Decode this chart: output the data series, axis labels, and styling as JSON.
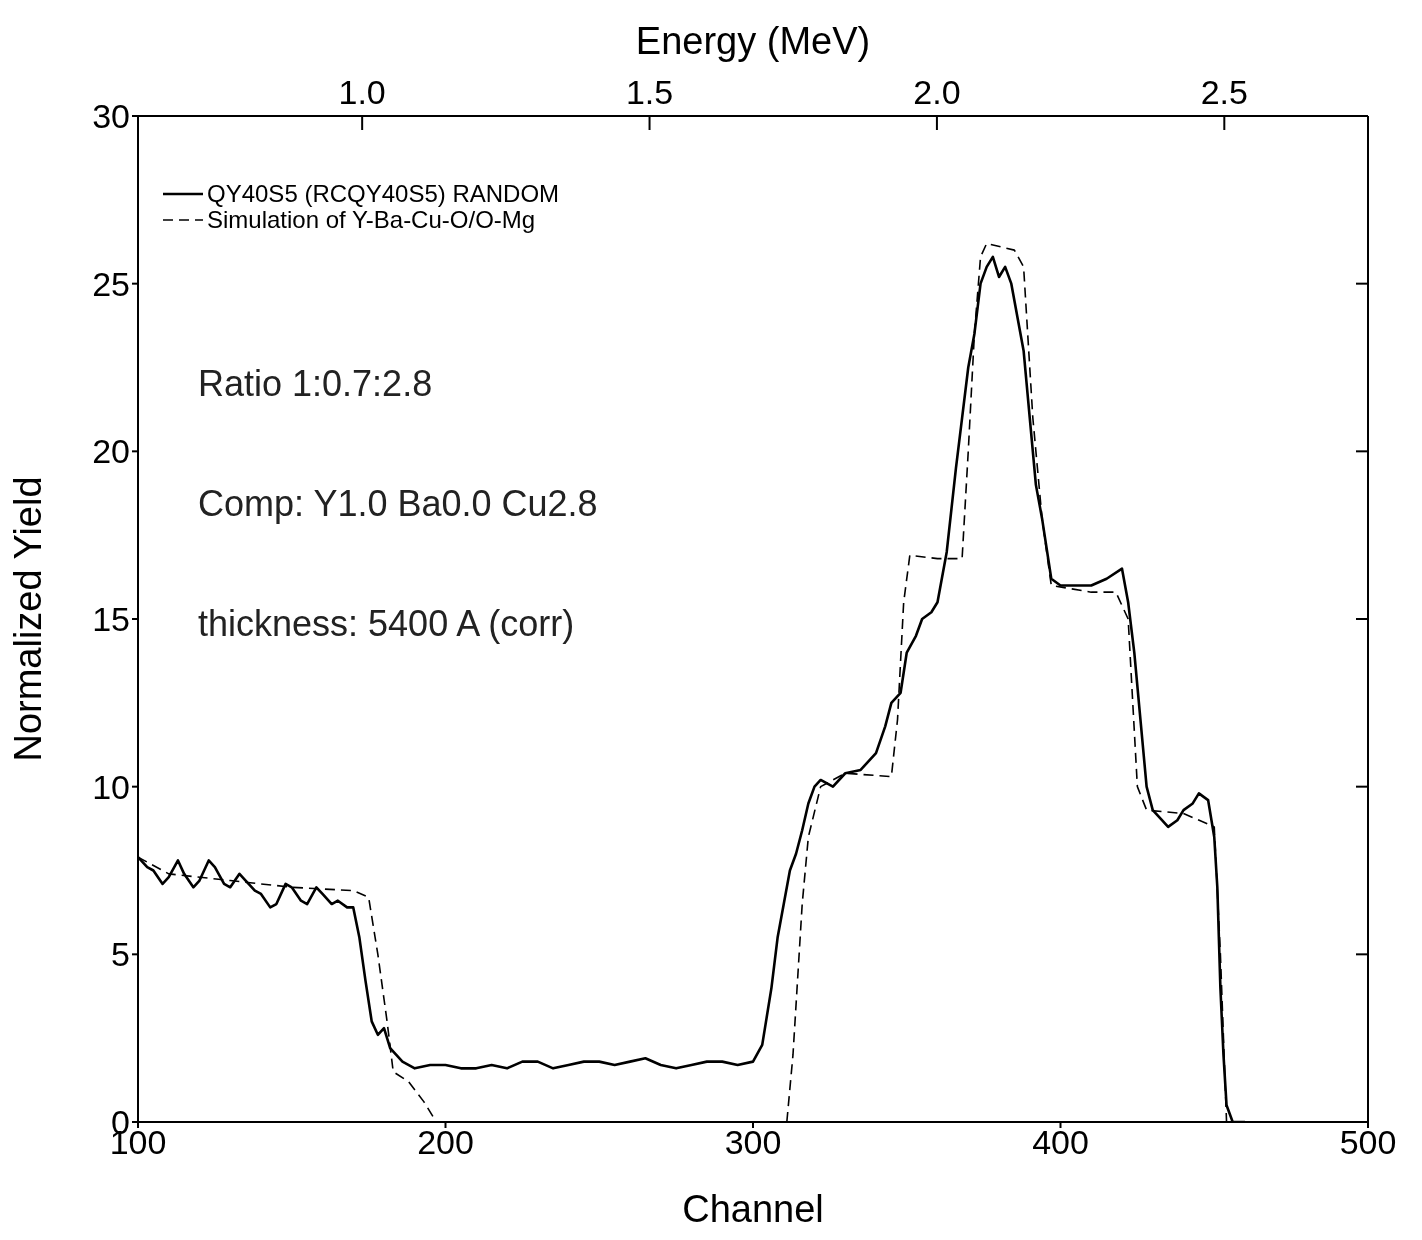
{
  "chart_data": {
    "type": "line",
    "xlabel": "Channel",
    "ylabel": "Normalized Yield",
    "x2label": "Energy (MeV)",
    "xlim": [
      100,
      500
    ],
    "xticks": [
      100,
      200,
      300,
      400,
      500
    ],
    "x2lim": [
      0.61,
      2.75
    ],
    "x2ticks": [
      {
        "value": 1.0,
        "label": "1.0"
      },
      1.5,
      {
        "value": 2.0,
        "label": "2.0"
      },
      2.5
    ],
    "ylim": [
      0,
      30
    ],
    "yticks": [
      0,
      5,
      10,
      15,
      20,
      25,
      30
    ],
    "grid": false,
    "legend": "top left",
    "marker": "none",
    "annotations": [
      "Ratio 1:0.7:2.8",
      "Comp: Y1.0 Ba0.0 Cu2.8",
      "thickness: 5400 A (corr)"
    ],
    "series": [
      {
        "name": "QY40S5 (RCQY40S5) RANDOM",
        "color": "#000000",
        "line_style": "solid",
        "x": [
          100,
          103,
          105,
          108,
          110,
          113,
          115,
          118,
          120,
          123,
          125,
          128,
          130,
          133,
          135,
          138,
          140,
          143,
          145,
          148,
          150,
          153,
          155,
          158,
          160,
          163,
          165,
          168,
          170,
          172,
          174,
          176,
          178,
          180,
          182,
          186,
          190,
          195,
          200,
          205,
          210,
          215,
          220,
          225,
          230,
          235,
          240,
          245,
          250,
          255,
          260,
          265,
          270,
          275,
          280,
          285,
          290,
          295,
          300,
          303,
          306,
          308,
          310,
          312,
          314,
          316,
          318,
          320,
          322,
          326,
          330,
          335,
          340,
          343,
          345,
          348,
          350,
          353,
          355,
          358,
          360,
          363,
          366,
          368,
          370,
          372,
          374,
          376,
          378,
          380,
          382,
          384,
          386,
          388,
          390,
          392,
          394,
          397,
          400,
          405,
          410,
          415,
          420,
          422,
          424,
          426,
          428,
          430,
          433,
          435,
          438,
          440,
          443,
          445,
          448,
          450,
          451,
          452,
          453,
          454,
          456,
          460
        ],
        "values": [
          7.9,
          7.6,
          7.5,
          7.1,
          7.3,
          7.8,
          7.4,
          7.0,
          7.2,
          7.8,
          7.6,
          7.1,
          7.0,
          7.4,
          7.2,
          6.9,
          6.8,
          6.4,
          6.5,
          7.1,
          7.0,
          6.6,
          6.5,
          7.0,
          6.8,
          6.5,
          6.6,
          6.4,
          6.4,
          5.5,
          4.2,
          3.0,
          2.6,
          2.8,
          2.2,
          1.8,
          1.6,
          1.7,
          1.7,
          1.6,
          1.6,
          1.7,
          1.6,
          1.8,
          1.8,
          1.6,
          1.7,
          1.8,
          1.8,
          1.7,
          1.8,
          1.9,
          1.7,
          1.6,
          1.7,
          1.8,
          1.8,
          1.7,
          1.8,
          2.3,
          4.0,
          5.5,
          6.5,
          7.5,
          8.0,
          8.7,
          9.5,
          10.0,
          10.2,
          10.0,
          10.4,
          10.5,
          11.0,
          11.8,
          12.5,
          12.8,
          14.0,
          14.5,
          15.0,
          15.2,
          15.5,
          17.0,
          19.5,
          21.0,
          22.5,
          23.5,
          25.0,
          25.5,
          25.8,
          25.2,
          25.5,
          25.0,
          24.0,
          23.0,
          21.0,
          19.0,
          18.0,
          16.2,
          16.0,
          16.0,
          16.0,
          16.2,
          16.5,
          15.5,
          14.0,
          12.0,
          10.0,
          9.3,
          9.0,
          8.8,
          9.0,
          9.3,
          9.5,
          9.8,
          9.6,
          8.5,
          7.0,
          4.0,
          2.0,
          0.5,
          0.0,
          0.0
        ]
      },
      {
        "name": "Simulation of Y-Ba-Cu-O/O-Mg",
        "color": "#000000",
        "line_style": "dashed",
        "x": [
          100,
          110,
          130,
          150,
          170,
          175,
          178,
          181,
          183,
          188,
          193,
          197,
          250,
          311,
          313,
          316,
          318,
          322,
          330,
          345,
          347,
          349,
          351,
          360,
          368,
          370,
          372,
          374,
          376,
          385,
          388,
          391,
          394,
          397,
          410,
          418,
          422,
          425,
          428,
          440,
          450,
          452,
          454
        ],
        "values": [
          7.9,
          7.4,
          7.2,
          7.0,
          6.9,
          6.7,
          5.0,
          3.0,
          1.5,
          1.2,
          0.6,
          0.0,
          null,
          0.0,
          2.0,
          6.5,
          8.5,
          10.0,
          10.4,
          10.3,
          12.0,
          15.5,
          16.9,
          16.8,
          16.8,
          20.0,
          23.5,
          25.8,
          26.2,
          26.0,
          25.5,
          21.0,
          18.0,
          16.0,
          15.8,
          15.8,
          15.0,
          10.0,
          9.3,
          9.2,
          8.8,
          5.0,
          0.0
        ]
      }
    ]
  }
}
